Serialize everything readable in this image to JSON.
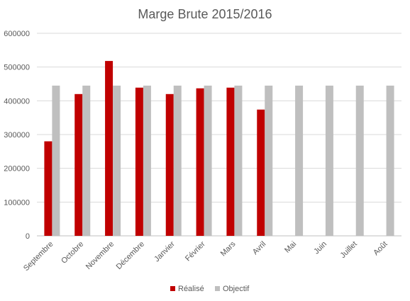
{
  "chart_data": {
    "type": "bar",
    "title": "Marge Brute 2015/2016",
    "xlabel": "",
    "ylabel": "",
    "categories": [
      "Septembre",
      "Octobre",
      "Novembre",
      "Décembre",
      "Janvier",
      "Février",
      "Mars",
      "Avril",
      "Mai",
      "Juin",
      "Juillet",
      "Août"
    ],
    "series": [
      {
        "name": "Réalisé",
        "color": "#c00000",
        "values": [
          280000,
          420000,
          518000,
          439000,
          420000,
          437000,
          439000,
          374000,
          null,
          null,
          null,
          null
        ]
      },
      {
        "name": "Objectif",
        "color": "#bfbfbf",
        "values": [
          445000,
          445000,
          445000,
          445000,
          445000,
          445000,
          445000,
          445000,
          445000,
          445000,
          445000,
          445000
        ]
      }
    ],
    "ylim": [
      0,
      600000
    ],
    "yticks": [
      0,
      100000,
      200000,
      300000,
      400000,
      500000,
      600000
    ],
    "grid": true,
    "legend_position": "bottom"
  }
}
